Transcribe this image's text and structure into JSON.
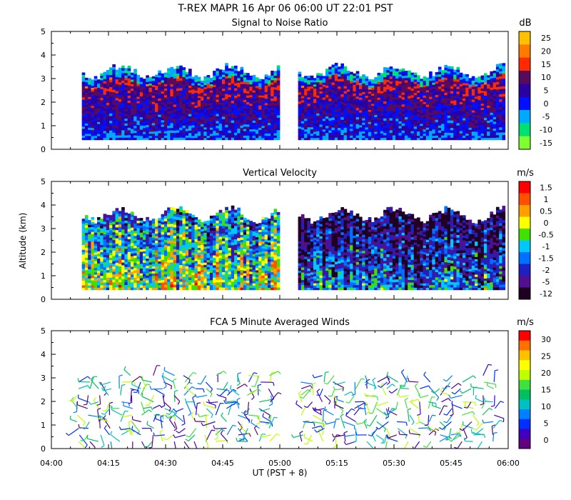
{
  "header": {
    "title": "T-REX  MAPR 16 Apr 06  06:00 UT  22:01  PST"
  },
  "chart_data": [
    {
      "type": "heatmap",
      "title": "Signal to Noise Ratio",
      "ylabel": "",
      "yticks": [
        "0",
        "1",
        "2",
        "3",
        "4",
        "5"
      ],
      "ylim": [
        0,
        5
      ],
      "xlim_hours": [
        4.0,
        6.0
      ],
      "data_gap_hours": [
        5.0,
        5.08
      ],
      "range_gates_km": [
        0.4,
        3.3
      ],
      "colorbar": {
        "unit": "dB",
        "labels": [
          "25",
          "20",
          "15",
          "10",
          "5",
          "0",
          "-5",
          "-10",
          "-15"
        ],
        "colors": [
          "#ffc000",
          "#ff7a00",
          "#ff2a00",
          "#5a0a5a",
          "#2a00a0",
          "#0010ff",
          "#00a8ff",
          "#00e070",
          "#80ff30"
        ]
      }
    },
    {
      "type": "heatmap",
      "title": "Vertical Velocity",
      "ylabel": "Altitude (km)",
      "yticks": [
        "0",
        "1",
        "2",
        "3",
        "4",
        "5"
      ],
      "ylim": [
        0,
        5
      ],
      "xlim_hours": [
        4.0,
        6.0
      ],
      "data_gap_hours": [
        5.0,
        5.08
      ],
      "range_gates_km": [
        0.4,
        3.6
      ],
      "colorbar": {
        "unit": "m/s",
        "labels": [
          "1.5",
          "1",
          "0.5",
          "0",
          "-0.5",
          "-1",
          "-1.5",
          "-2",
          "-5",
          "-12"
        ],
        "colors": [
          "#ff0000",
          "#ff5000",
          "#ffa000",
          "#ffff00",
          "#40e000",
          "#00c8ff",
          "#0070ff",
          "#2020c0",
          "#501090",
          "#200020"
        ]
      }
    },
    {
      "type": "other",
      "title": "FCA 5 Minute Averaged Winds",
      "ylabel": "",
      "yticks": [
        "0",
        "1",
        "2",
        "3",
        "4",
        "5"
      ],
      "ylim": [
        0,
        5
      ],
      "xlim_hours": [
        4.0,
        6.0
      ],
      "data_gap_hours": [
        5.0,
        5.08
      ],
      "xlabel": "UT  (PST + 8)",
      "xticks": [
        "04:00",
        "04:15",
        "04:30",
        "04:45",
        "05:00",
        "05:15",
        "05:30",
        "05:45",
        "06:00"
      ],
      "colorbar": {
        "unit": "m/s",
        "labels": [
          "30",
          "25",
          "20",
          "15",
          "10",
          "5",
          "0"
        ],
        "colors": [
          "#ff0000",
          "#ff7000",
          "#ffc000",
          "#ffff00",
          "#c0ff00",
          "#40e040",
          "#00c060",
          "#00c0c0",
          "#0080ff",
          "#0030ff",
          "#4000c0",
          "#600080"
        ]
      }
    }
  ]
}
